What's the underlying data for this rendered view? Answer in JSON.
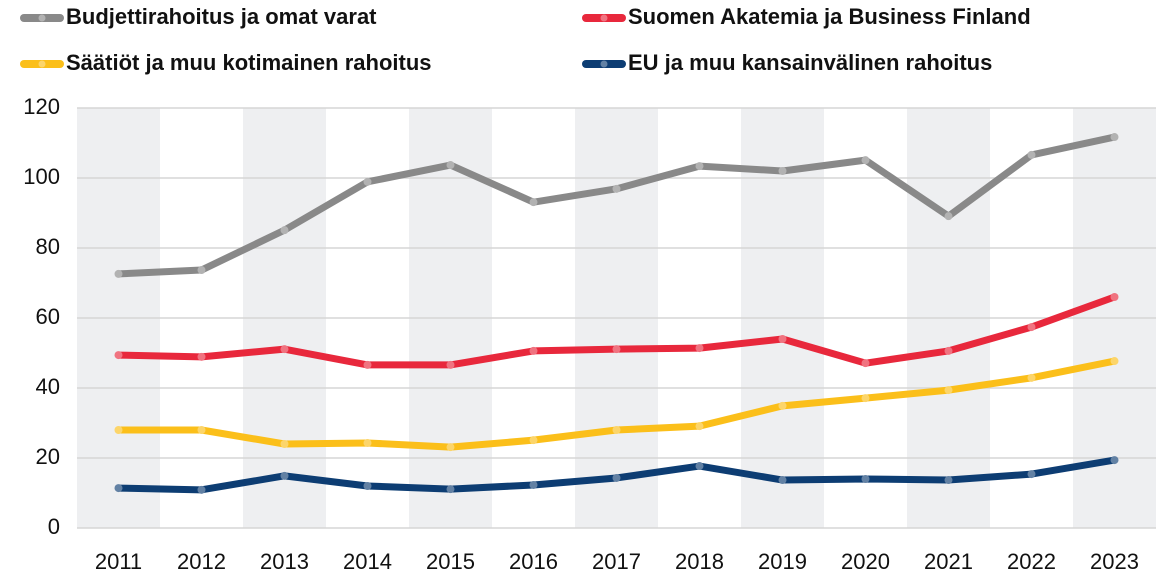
{
  "chart_data": {
    "type": "line",
    "categories": [
      "2011",
      "2012",
      "2013",
      "2014",
      "2015",
      "2016",
      "2017",
      "2018",
      "2019",
      "2020",
      "2021",
      "2022",
      "2023"
    ],
    "series": [
      {
        "name": "Budjettirahoitus ja omat varat",
        "color": "#898989",
        "values": [
          72.6,
          73.7,
          85.1,
          98.9,
          103.7,
          93.1,
          96.9,
          103.4,
          102.0,
          105.1,
          89.1,
          106.6,
          111.7
        ]
      },
      {
        "name": "Suomen Akatemia ja Business Finland",
        "color": "#e8283c",
        "values": [
          49.4,
          48.9,
          51.1,
          46.6,
          46.6,
          50.6,
          51.1,
          51.4,
          54.0,
          47.1,
          50.6,
          57.4,
          66.0
        ]
      },
      {
        "name": "Säätiöt ja muu kotimainen rahoitus",
        "color": "#fbbf1a",
        "values": [
          28.0,
          28.0,
          24.0,
          24.3,
          23.1,
          25.1,
          28.0,
          29.1,
          34.9,
          37.1,
          39.4,
          42.9,
          47.7
        ]
      },
      {
        "name": "EU ja muu kansainvälinen rahoitus",
        "color": "#0d3d73",
        "values": [
          11.4,
          10.9,
          14.9,
          12.0,
          11.1,
          12.3,
          14.3,
          17.7,
          13.7,
          14.0,
          13.7,
          15.4,
          19.4
        ]
      }
    ],
    "ylim": [
      0,
      120
    ],
    "yticks": [
      0,
      20,
      40,
      60,
      80,
      100,
      120
    ],
    "grid": true,
    "legend": "top"
  }
}
